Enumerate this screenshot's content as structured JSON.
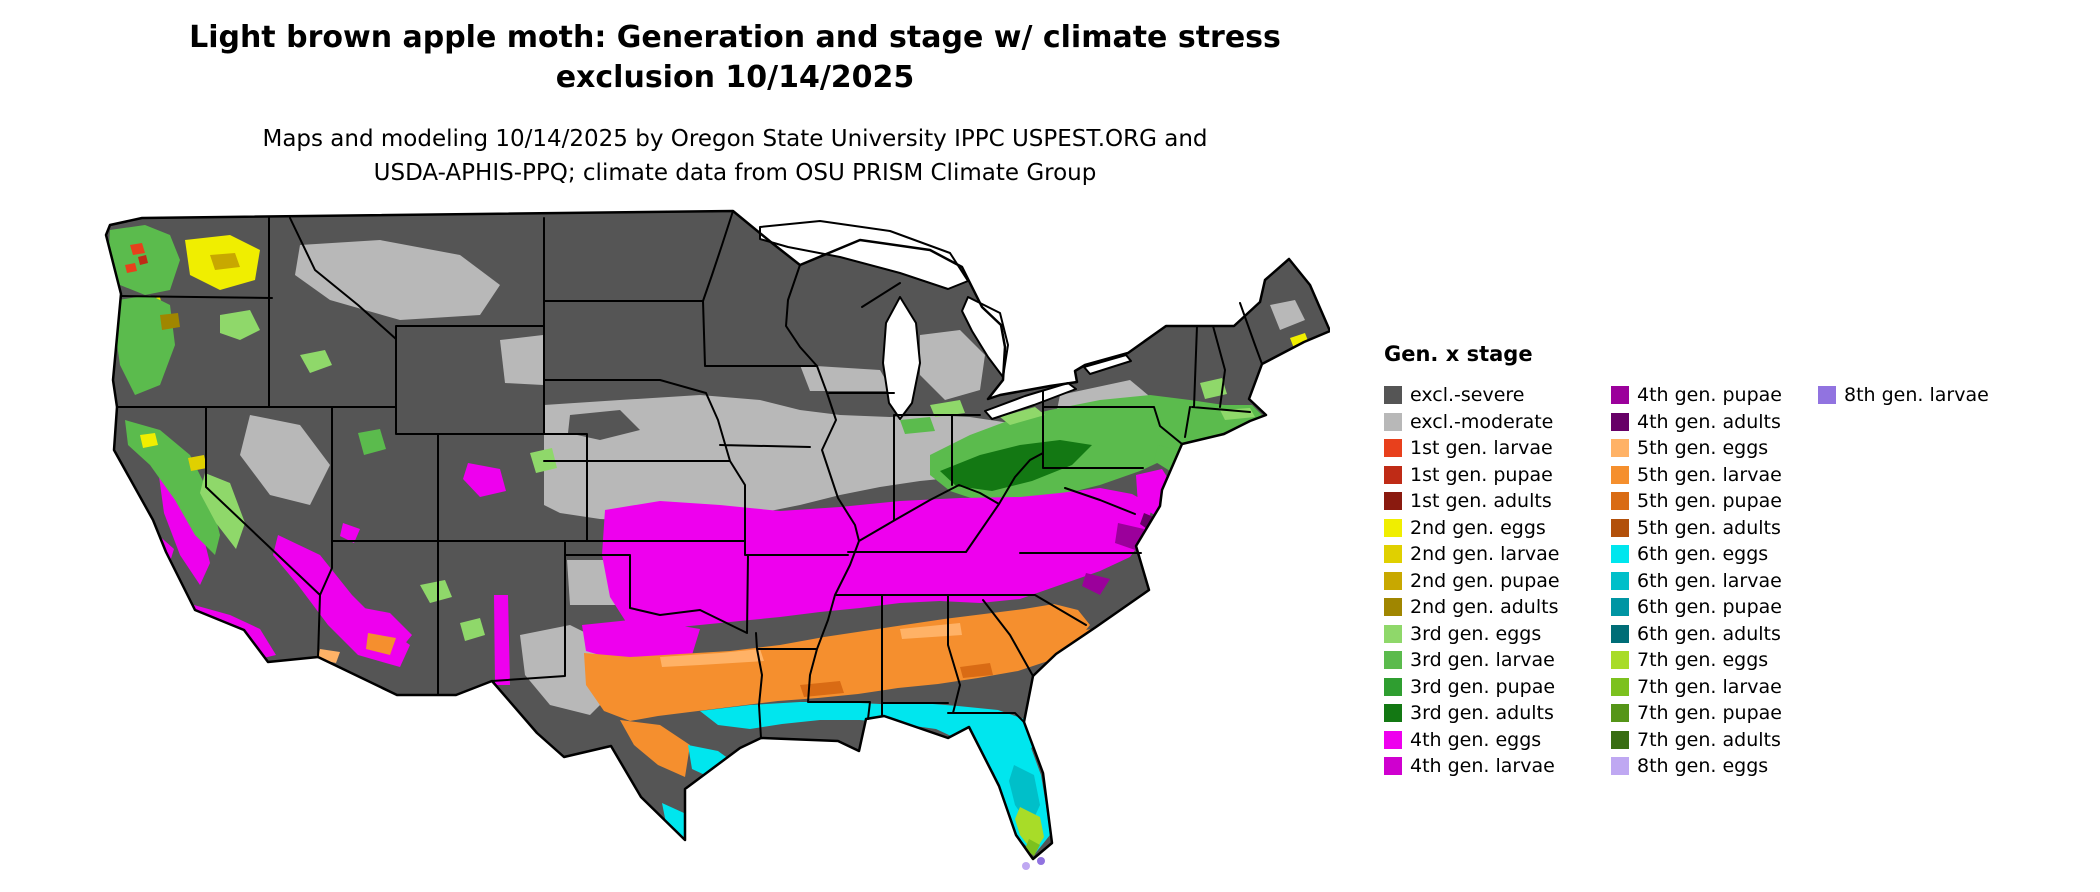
{
  "title": {
    "line1": "Light brown apple moth: Generation and stage w/ climate stress",
    "line2": "exclusion 10/14/2025"
  },
  "subtitle": {
    "line1": "Maps and modeling 10/14/2025 by Oregon State University IPPC USPEST.ORG and",
    "line2": "USDA-APHIS-PPQ; climate data from OSU PRISM Climate Group"
  },
  "map": {
    "background_color": "#ffffff",
    "outline_color": "#000000",
    "water_color": "#ffffff"
  },
  "legend": {
    "title": "Gen. x stage",
    "columns": [
      {
        "items": [
          {
            "key": "excl_severe",
            "label": "excl.-severe",
            "color": "#555555"
          },
          {
            "key": "excl_moderate",
            "label": "excl.-moderate",
            "color": "#b8b8b8"
          },
          {
            "key": "g1_larvae",
            "label": "1st gen. larvae",
            "color": "#e8401c"
          },
          {
            "key": "g1_pupae",
            "label": "1st gen. pupae",
            "color": "#bf2b16"
          },
          {
            "key": "g1_adults",
            "label": "1st gen. adults",
            "color": "#8a1a0f"
          },
          {
            "key": "g2_eggs",
            "label": "2nd gen. eggs",
            "color": "#f0ee00"
          },
          {
            "key": "g2_larvae",
            "label": "2nd gen. larvae",
            "color": "#e0d000"
          },
          {
            "key": "g2_pupae",
            "label": "2nd gen. pupae",
            "color": "#c8a800"
          },
          {
            "key": "g2_adults",
            "label": "2nd gen. adults",
            "color": "#a08600"
          },
          {
            "key": "g3_eggs",
            "label": "3rd gen. eggs",
            "color": "#8fd86a"
          },
          {
            "key": "g3_larvae",
            "label": "3rd gen. larvae",
            "color": "#5bbb4d"
          },
          {
            "key": "g3_pupae",
            "label": "3rd gen. pupae",
            "color": "#2f9e30"
          },
          {
            "key": "g3_adults",
            "label": "3rd gen. adults",
            "color": "#137813"
          },
          {
            "key": "g4_eggs",
            "label": "4th gen. eggs",
            "color": "#ee00ee"
          },
          {
            "key": "g4_larvae",
            "label": "4th gen. larvae",
            "color": "#cf00cf"
          }
        ]
      },
      {
        "items": [
          {
            "key": "g4_pupae",
            "label": "4th gen. pupae",
            "color": "#9b009b"
          },
          {
            "key": "g4_adults",
            "label": "4th gen. adults",
            "color": "#670067"
          },
          {
            "key": "g5_eggs",
            "label": "5th gen. eggs",
            "color": "#ffb266"
          },
          {
            "key": "g5_larvae",
            "label": "5th gen. larvae",
            "color": "#f58f2e"
          },
          {
            "key": "g5_pupae",
            "label": "5th gen. pupae",
            "color": "#d96b14"
          },
          {
            "key": "g5_adults",
            "label": "5th gen. adults",
            "color": "#b2500a"
          },
          {
            "key": "g6_eggs",
            "label": "6th gen. eggs",
            "color": "#00e6ee"
          },
          {
            "key": "g6_larvae",
            "label": "6th gen. larvae",
            "color": "#00bfc9"
          },
          {
            "key": "g6_pupae",
            "label": "6th gen. pupae",
            "color": "#0095a3"
          },
          {
            "key": "g6_adults",
            "label": "6th gen. adults",
            "color": "#006d77"
          },
          {
            "key": "g7_eggs",
            "label": "7th gen. eggs",
            "color": "#a8dc28"
          },
          {
            "key": "g7_larvae",
            "label": "7th gen. larvae",
            "color": "#7cc11e"
          },
          {
            "key": "g7_pupae",
            "label": "7th gen. pupae",
            "color": "#559518"
          },
          {
            "key": "g7_adults",
            "label": "7th gen. adults",
            "color": "#396d12"
          },
          {
            "key": "g8_eggs",
            "label": "8th gen. eggs",
            "color": "#bfa8f2"
          }
        ]
      },
      {
        "items": [
          {
            "key": "g8_larvae",
            "label": "8th gen. larvae",
            "color": "#9173e0"
          }
        ]
      }
    ]
  }
}
